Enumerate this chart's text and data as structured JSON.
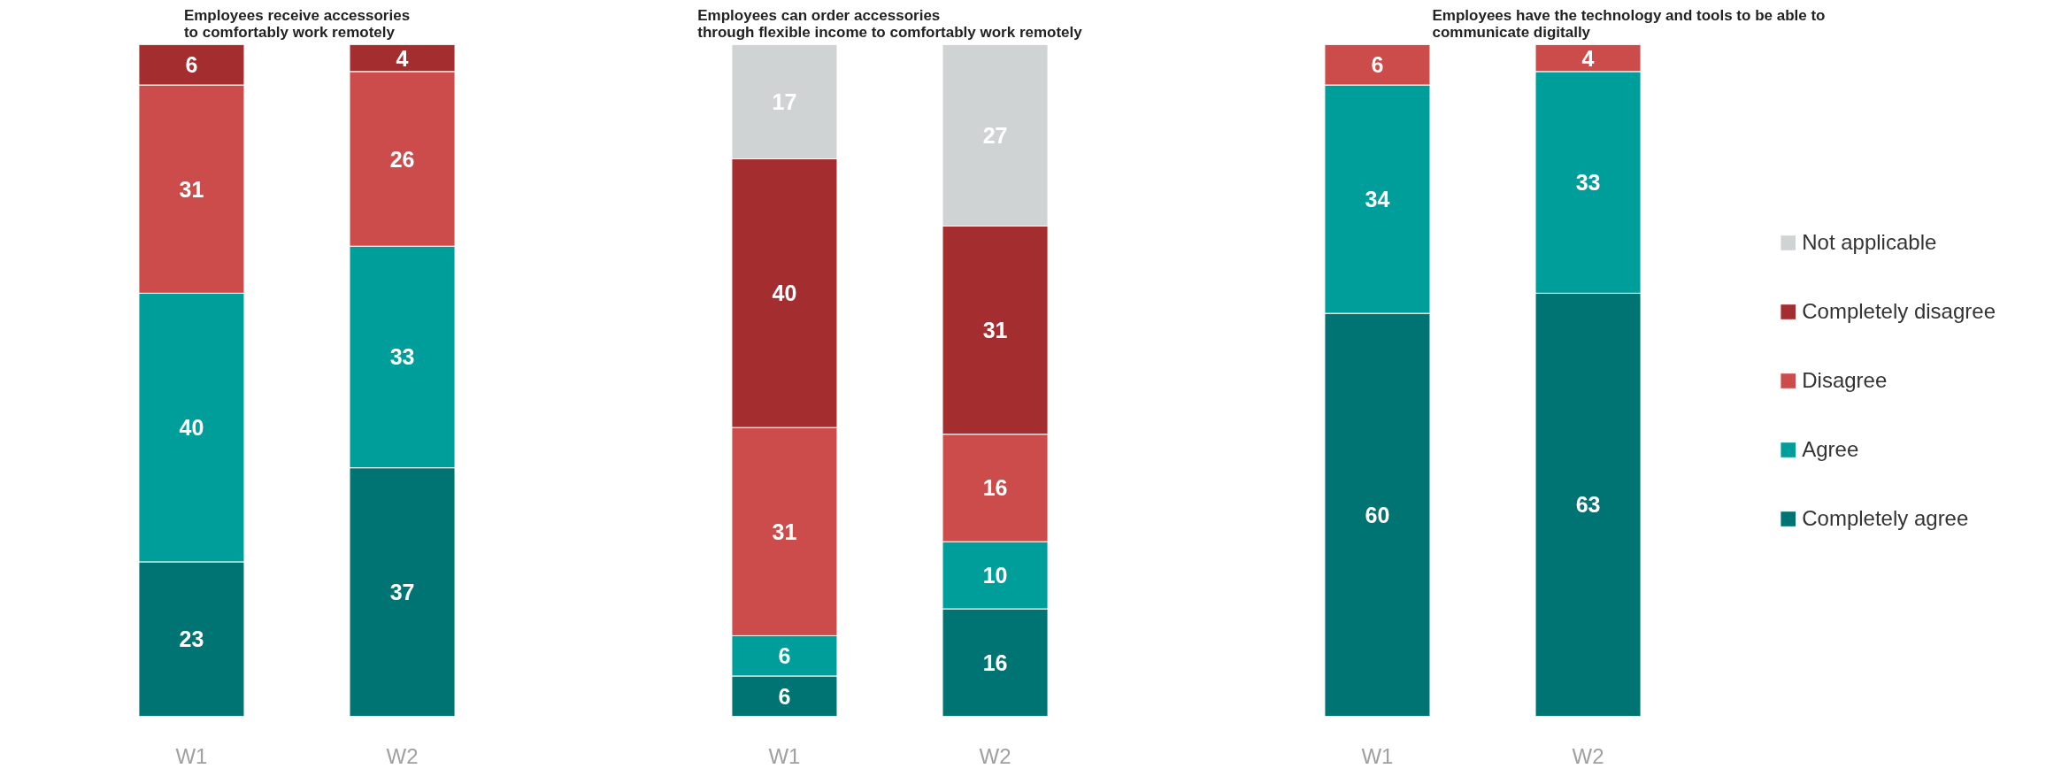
{
  "chart_data": [
    {
      "type": "bar",
      "stacked": true,
      "title": "Employees receive accessories\nto comfortably work remotely",
      "categories": [
        "W1",
        "W2"
      ],
      "ylim": [
        0,
        100
      ],
      "tick_labels": "x",
      "data_labels": true,
      "grid": false,
      "legend": false,
      "series": [
        {
          "color": "#007472",
          "values": [
            23,
            37
          ]
        },
        {
          "color": "#009e9b",
          "values": [
            40,
            33
          ]
        },
        {
          "color": "#cc4b4b",
          "values": [
            31,
            26
          ]
        },
        {
          "color": "#a32d2f",
          "values": [
            6,
            4
          ]
        }
      ]
    },
    {
      "type": "bar",
      "stacked": true,
      "title": "Employees can order accessories\nthrough flexible income to comfortably work remotely",
      "categories": [
        "W1",
        "W2"
      ],
      "ylim": [
        0,
        100
      ],
      "tick_labels": "x",
      "data_labels": true,
      "grid": false,
      "legend": false,
      "series": [
        {
          "color": "#007472",
          "values": [
            6,
            16
          ]
        },
        {
          "color": "#009e9b",
          "values": [
            6,
            10
          ]
        },
        {
          "color": "#cc4b4b",
          "values": [
            31,
            16
          ]
        },
        {
          "color": "#a32d2f",
          "values": [
            40,
            31
          ]
        },
        {
          "color": "#d0d3d4",
          "values": [
            17,
            27
          ]
        }
      ]
    },
    {
      "type": "bar",
      "stacked": true,
      "title": "Employees have the technology and tools to be able to\ncommunicate digitally",
      "categories": [
        "W1",
        "W2"
      ],
      "ylim": [
        0,
        100
      ],
      "tick_labels": "x",
      "data_labels": true,
      "grid": false,
      "legend": "right",
      "series": [
        {
          "name": "Completely agree",
          "color": "#007472",
          "values": [
            60,
            63
          ]
        },
        {
          "name": "Agree",
          "color": "#009e9b",
          "values": [
            34,
            33
          ]
        },
        {
          "name": "Disagree",
          "color": "#cc4b4b",
          "values": [
            6,
            4
          ]
        },
        {
          "name": "Completely disagree",
          "color": "#a32d2f",
          "values": [
            null,
            null
          ]
        },
        {
          "name": "Not applicable",
          "color": "#d0d3d4",
          "values": [
            null,
            null
          ]
        }
      ]
    }
  ]
}
